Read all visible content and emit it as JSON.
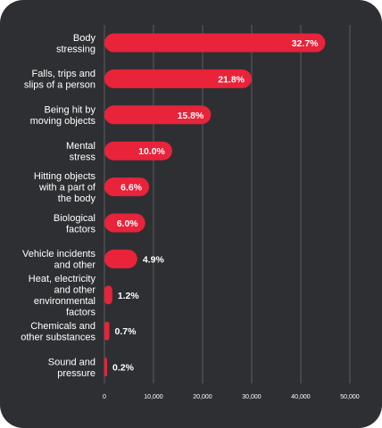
{
  "chart_data": {
    "type": "bar",
    "orientation": "horizontal",
    "title": "",
    "xlabel": "",
    "ylabel": "",
    "categories": [
      [
        "Body",
        "stressing"
      ],
      [
        "Falls, trips and",
        "slips of a person"
      ],
      [
        "Being hit by",
        "moving objects"
      ],
      [
        "Mental",
        "stress"
      ],
      [
        "Hitting objects",
        "with a part of",
        "the body"
      ],
      [
        "Biological",
        "factors"
      ],
      [
        "Vehicle incidents",
        "and other"
      ],
      [
        "Heat, electricity",
        "and other",
        "environmental",
        "factors"
      ],
      [
        "Chemicals and",
        "other substances"
      ],
      [
        "Sound and",
        "pressure"
      ]
    ],
    "values": [
      45000,
      30000,
      21700,
      13800,
      9100,
      8300,
      6700,
      1600,
      1000,
      300
    ],
    "data_labels": [
      "32.7%",
      "21.8%",
      "15.8%",
      "10.0%",
      "6.6%",
      "6.0%",
      "4.9%",
      "1.2%",
      "0.7%",
      "0.2%"
    ],
    "xlim": [
      0,
      50000
    ],
    "x_ticks": [
      0,
      10000,
      20000,
      30000,
      40000,
      50000
    ],
    "x_tick_labels": [
      "0",
      "10,000",
      "20,000",
      "30,000",
      "40,000",
      "50,000"
    ],
    "grid": true,
    "legend": "none",
    "colors": {
      "background": "#2e2f33",
      "bar": "#e8233a",
      "grid": "#5b5c60",
      "text": "#ffffff"
    }
  }
}
